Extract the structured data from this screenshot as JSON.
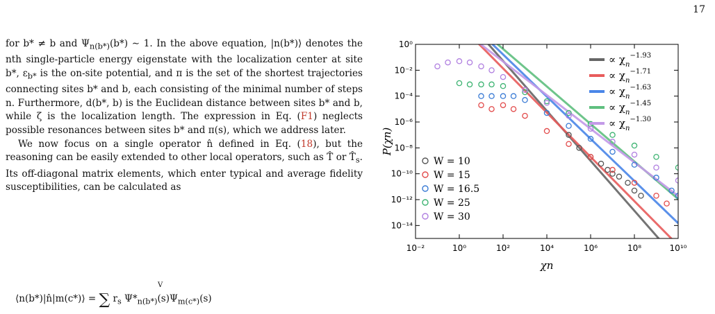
{
  "page_number": "17",
  "body": {
    "p1": [
      "for b* ≠ b and Ψ",
      "n(b*)",
      "(b*) ∼ 1. In the above equation, |n(b*)⟩ denotes the nth single-particle energy eigenstate with the localization center at site b*, ε",
      "b*",
      " is the on-site potential, and π is the set of the shortest trajectories connecting sites b* and b, each consisting of the minimal number of steps n. Furthermore, d(b*, b) is the Euclidean distance between sites b* and b, while ζ is the localization length. The expression in Eq. (",
      "F1",
      ") neglects possible resonances between sites b* and π(s), which we address later."
    ],
    "p2": [
      "We now focus on a single operator n̂ defined in Eq. (",
      "18",
      "), but the reasoning can be easily extended to other local operators, such as T̂ or T̂",
      "s",
      ". Its off-diagonal matrix elements, which enter typical and average fidelity susceptibilities, can be calculated as"
    ],
    "equation": [
      "⟨n(b*)|n̂|m(c*)⟩ = ",
      "∑",
      "V",
      " r",
      "s",
      " Ψ*",
      "n(b*)",
      "(s)Ψ",
      "m(c*)",
      "(s)"
    ]
  },
  "chart_data": {
    "type": "scatter",
    "title": "",
    "xlabel": "χn",
    "ylabel": "P(χn)",
    "xscale": "log",
    "yscale": "log",
    "xlim": [
      0.01,
      10000000000.0
    ],
    "ylim": [
      1e-15,
      1
    ],
    "x_ticks": [
      "10⁻²",
      "10⁰",
      "10²",
      "10⁴",
      "10⁶",
      "10⁸",
      "10¹⁰"
    ],
    "y_ticks": [
      "10⁰",
      "10⁻²",
      "10⁻⁴",
      "10⁻⁶",
      "10⁻⁸",
      "10⁻¹⁰",
      "10⁻¹²",
      "10⁻¹⁴"
    ],
    "legend_fits_position": "top-right",
    "legend_points_position": "bottom-left",
    "series": [
      {
        "name": "W = 10",
        "color": "#555555",
        "points": [
          [
            100000.0,
            1e-07
          ],
          [
            300000.0,
            1e-08
          ],
          [
            1000000.0,
            2e-09
          ],
          [
            3000000.0,
            6e-10
          ],
          [
            6000000.0,
            2e-10
          ],
          [
            10000000.0,
            1e-10
          ],
          [
            20000000.0,
            6e-11
          ],
          [
            50000000.0,
            2e-11
          ],
          [
            100000000.0,
            5e-12
          ],
          [
            200000000.0,
            2e-12
          ]
        ]
      },
      {
        "name": "W = 15",
        "color": "#e24a4a",
        "points": [
          [
            10,
            2e-05
          ],
          [
            30,
            1e-05
          ],
          [
            100,
            2e-05
          ],
          [
            300,
            1e-05
          ],
          [
            1000,
            3e-06
          ],
          [
            10000.0,
            2e-07
          ],
          [
            100000.0,
            2e-08
          ],
          [
            1000000.0,
            2e-09
          ],
          [
            10000000.0,
            2e-10
          ],
          [
            100000000.0,
            2e-11
          ],
          [
            1000000000.0,
            2e-12
          ],
          [
            3000000000.0,
            5e-13
          ]
        ]
      },
      {
        "name": "W = 16.5",
        "color": "#3a7bd5",
        "points": [
          [
            10,
            0.0001
          ],
          [
            30,
            0.0001
          ],
          [
            100,
            0.0001
          ],
          [
            300,
            0.0001
          ],
          [
            1000,
            5e-05
          ],
          [
            10000.0,
            5e-06
          ],
          [
            100000.0,
            5e-07
          ],
          [
            1000000.0,
            5e-08
          ],
          [
            10000000.0,
            5e-09
          ],
          [
            100000000.0,
            5e-10
          ],
          [
            1000000000.0,
            5e-11
          ],
          [
            5000000000.0,
            5e-12
          ],
          [
            10000000000.0,
            2e-12
          ]
        ]
      },
      {
        "name": "W = 25",
        "color": "#3cb371",
        "points": [
          [
            1,
            0.001
          ],
          [
            3,
            0.0008
          ],
          [
            10,
            0.0008
          ],
          [
            30,
            0.0008
          ],
          [
            100,
            0.0006
          ],
          [
            1000,
            0.0002
          ],
          [
            10000.0,
            4e-05
          ],
          [
            100000.0,
            5e-06
          ],
          [
            1000000.0,
            7e-07
          ],
          [
            10000000.0,
            1e-07
          ],
          [
            100000000.0,
            1.5e-08
          ],
          [
            1000000000.0,
            2e-09
          ],
          [
            10000000000.0,
            3e-10
          ]
        ]
      },
      {
        "name": "W = 30",
        "color": "#b07fe0",
        "points": [
          [
            0.1,
            0.02
          ],
          [
            0.3,
            0.04
          ],
          [
            1,
            0.05
          ],
          [
            3,
            0.04
          ],
          [
            10,
            0.02
          ],
          [
            30,
            0.01
          ],
          [
            100,
            0.003
          ],
          [
            1000,
            0.0003
          ],
          [
            10000.0,
            3e-05
          ],
          [
            100000.0,
            3e-06
          ],
          [
            1000000.0,
            3e-07
          ],
          [
            10000000.0,
            3e-08
          ],
          [
            100000000.0,
            3e-09
          ],
          [
            1000000000.0,
            3e-10
          ],
          [
            10000000000.0,
            3e-11
          ]
        ]
      }
    ],
    "fits": [
      {
        "label": "−1.93",
        "color": "#666666",
        "exponent": -1.93,
        "through": [
          1000000.0,
          1e-09
        ]
      },
      {
        "label": "−1.71",
        "color": "#e85c5c",
        "exponent": -1.71,
        "through": [
          1000000.0,
          2e-09
        ]
      },
      {
        "label": "−1.63",
        "color": "#4a86e8",
        "exponent": -1.63,
        "through": [
          1000000.0,
          5e-08
        ]
      },
      {
        "label": "−1.45",
        "color": "#5fbf7f",
        "exponent": -1.45,
        "through": [
          1000000.0,
          7e-07
        ]
      },
      {
        "label": "−1.30",
        "color": "#c39ae8",
        "exponent": -1.3,
        "through": [
          1000000.0,
          3e-07
        ]
      }
    ]
  }
}
